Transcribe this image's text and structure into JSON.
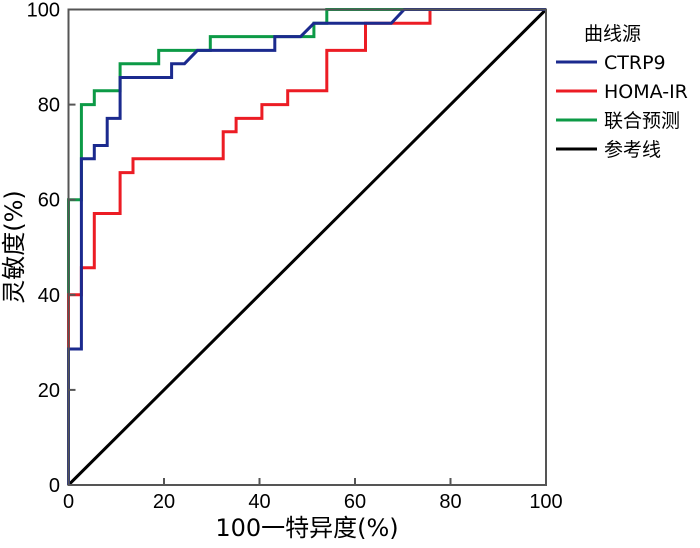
{
  "chart_data": {
    "type": "line",
    "title": "",
    "xlabel": "100一特异度(%)",
    "ylabel": "灵敏度(%)",
    "xlim": [
      0,
      100
    ],
    "ylim": [
      0,
      100
    ],
    "xticks": [
      0,
      20,
      40,
      60,
      80,
      100
    ],
    "yticks": [
      0,
      20,
      40,
      60,
      80,
      100
    ],
    "grid": false,
    "legend": {
      "title": "曲线源",
      "placement": "right"
    },
    "series": [
      {
        "name": "CTRP9",
        "color": "#1b2a8e",
        "x": [
          0,
          0,
          2.7,
          2.7,
          5.4,
          5.4,
          8.1,
          8.1,
          10.8,
          10.8,
          21.6,
          21.6,
          24.3,
          27.0,
          43.2,
          43.2,
          48.6,
          51.4,
          67.6,
          70.3,
          100
        ],
        "y": [
          0,
          28.6,
          28.6,
          68.6,
          68.6,
          71.4,
          71.4,
          77.1,
          77.1,
          85.7,
          85.7,
          88.6,
          88.6,
          91.4,
          91.4,
          94.3,
          94.3,
          97.1,
          97.1,
          100,
          100
        ]
      },
      {
        "name": "HOMA-IR",
        "color": "#ec1c24",
        "x": [
          0,
          0,
          2.7,
          2.7,
          5.4,
          5.4,
          10.8,
          10.8,
          13.5,
          13.5,
          32.4,
          32.4,
          35.1,
          35.1,
          40.5,
          40.5,
          45.9,
          45.9,
          54.1,
          54.1,
          62.2,
          62.2,
          75.7,
          75.7,
          100
        ],
        "y": [
          0,
          40.0,
          40.0,
          45.7,
          45.7,
          57.1,
          57.1,
          65.7,
          65.7,
          68.6,
          68.6,
          74.3,
          74.3,
          77.1,
          77.1,
          80.0,
          80.0,
          82.9,
          82.9,
          91.4,
          91.4,
          97.1,
          97.1,
          100,
          100
        ]
      },
      {
        "name": "联合预测",
        "color": "#0c9a46",
        "x": [
          0,
          0,
          2.7,
          2.7,
          5.4,
          5.4,
          10.8,
          10.8,
          18.9,
          18.9,
          29.7,
          29.7,
          51.4,
          51.4,
          54.1,
          54.1,
          100
        ],
        "y": [
          0,
          60.0,
          60.0,
          80.0,
          80.0,
          82.9,
          82.9,
          88.6,
          88.6,
          91.4,
          91.4,
          94.3,
          94.3,
          97.1,
          97.1,
          100,
          100
        ]
      },
      {
        "name": "参考线",
        "color": "#000000",
        "x": [
          0,
          100
        ],
        "y": [
          0,
          100
        ]
      }
    ]
  }
}
